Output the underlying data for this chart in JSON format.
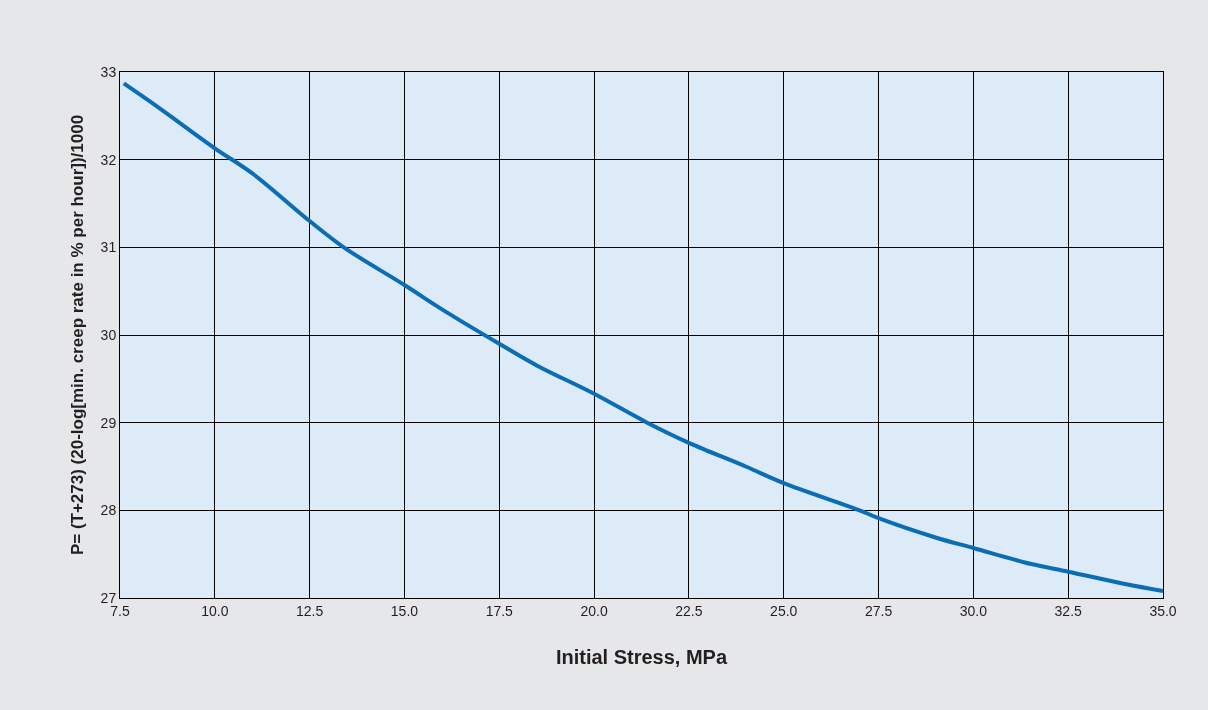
{
  "chart_data": {
    "type": "line",
    "xlabel": "Initial Stress, MPa",
    "ylabel": "P= (T+273) (20-log[min. creep rate in % per hour])/1000",
    "x": [
      7.6,
      8.5,
      10.0,
      11.0,
      12.5,
      13.4,
      15.0,
      16.0,
      17.5,
      18.5,
      20.0,
      21.4,
      22.5,
      24.0,
      25.0,
      27.0,
      27.5,
      29.0,
      30.0,
      31.5,
      32.5,
      34.0,
      35.0
    ],
    "series": [
      {
        "color": "#0a6db5",
        "values": [
          32.87,
          32.6,
          32.13,
          31.84,
          31.3,
          31.0,
          30.57,
          30.29,
          29.9,
          29.65,
          29.33,
          29.0,
          28.77,
          28.5,
          28.31,
          28.0,
          27.91,
          27.69,
          27.57,
          27.39,
          27.3,
          27.16,
          27.08
        ]
      }
    ],
    "xlim": [
      7.5,
      35.0
    ],
    "xticks": [
      {
        "value": 7.5,
        "label": "7.5"
      },
      {
        "value": 10,
        "label": "10.0"
      },
      {
        "value": 12.5,
        "label": "12.5"
      },
      {
        "value": 15,
        "label": "15.0"
      },
      {
        "value": 17.5,
        "label": "17.5"
      },
      {
        "value": 20,
        "label": "20.0"
      },
      {
        "value": 22.5,
        "label": "22.5"
      },
      {
        "value": 25,
        "label": "25.0"
      },
      {
        "value": 27.5,
        "label": "27.5"
      },
      {
        "value": 30,
        "label": "30.0"
      },
      {
        "value": 32.5,
        "label": "32.5"
      },
      {
        "value": 35,
        "label": "35.0"
      }
    ],
    "ylim": [
      27,
      33
    ],
    "yticks": [
      27,
      28,
      29,
      30,
      31,
      32,
      33
    ],
    "grid": true,
    "marker": "none",
    "line_style": "solid"
  }
}
